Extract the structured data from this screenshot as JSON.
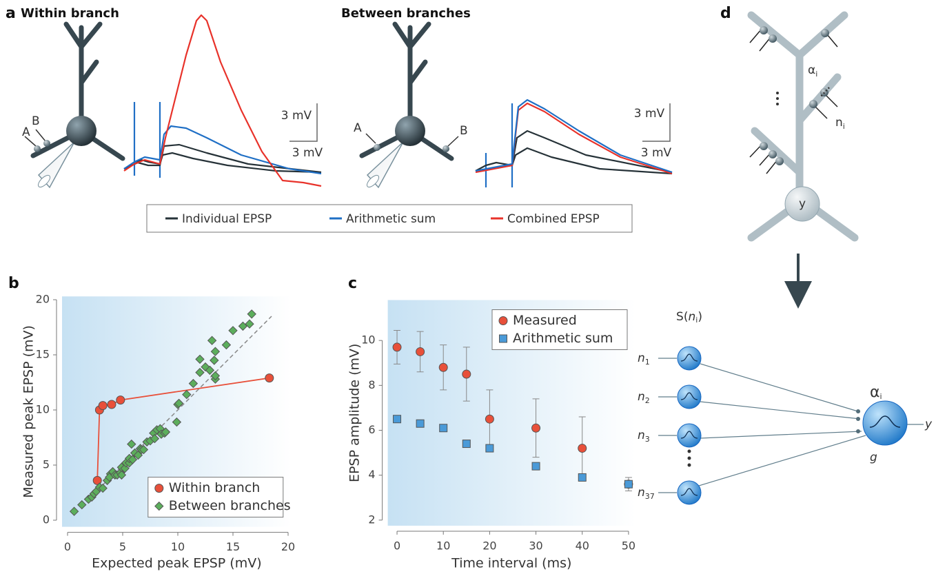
{
  "panel_a": {
    "label": "a",
    "left_title": "Within branch",
    "right_title": "Between branches",
    "left_synapses": [
      "A",
      "B"
    ],
    "right_synapses": [
      "A",
      "B"
    ],
    "left_scale": [
      "3 mV",
      "3 mV"
    ],
    "right_scale": [
      "3 mV",
      "3 mV"
    ],
    "legend": [
      {
        "name": "Individual EPSP",
        "color": "#263238"
      },
      {
        "name": "Arithmetic sum",
        "color": "#1f6fc5"
      },
      {
        "name": "Combined EPSP",
        "color": "#e8322a"
      }
    ]
  },
  "chart_data": [
    {
      "type": "scatter",
      "label": "b",
      "xlabel": "Expected peak EPSP (mV)",
      "ylabel": "Measured peak EPSP (mV)",
      "xlim": [
        -0.5,
        20.3
      ],
      "ylim": [
        -0.6,
        20.3
      ],
      "xticks": [
        0,
        5,
        10,
        15,
        20
      ],
      "yticks": [
        0,
        5,
        10,
        15,
        20
      ],
      "legend": "lower right",
      "reference_line": {
        "x": [
          2.8,
          18.5
        ],
        "values": [
          2.8,
          18.5
        ],
        "color": "#888888"
      },
      "series": [
        {
          "name": "Within branch",
          "color": "#e8503a",
          "marker": "circle",
          "connect": true,
          "x": [
            2.7,
            2.9,
            3.2,
            4.0,
            4.8,
            18.3
          ],
          "values": [
            3.6,
            10.0,
            10.4,
            10.5,
            10.9,
            12.9
          ]
        },
        {
          "name": "Between branches",
          "color": "#5cae5c",
          "marker": "diamond",
          "connect": false,
          "x": [
            0.6,
            1.3,
            1.9,
            2.2,
            2.4,
            2.6,
            2.9,
            3.2,
            3.6,
            3.9,
            4.1,
            3.8,
            4.3,
            4.5,
            4.8,
            4.9,
            4.9,
            5.2,
            5.3,
            5.6,
            5.6,
            5.9,
            5.8,
            6.1,
            6.4,
            6.6,
            6.7,
            6.9,
            7.2,
            7.5,
            7.8,
            7.9,
            8.1,
            8.4,
            8.5,
            8.8,
            8.9,
            9.9,
            10.0,
            10.1,
            10.8,
            11.4,
            12.0,
            12.0,
            12.5,
            12.9,
            13.3,
            13.4,
            13.1,
            13.4,
            13.4,
            14.4,
            15.0,
            15.9,
            16.5,
            16.7
          ],
          "values": [
            0.8,
            1.4,
            1.9,
            2.1,
            2.4,
            2.6,
            3.0,
            2.9,
            3.6,
            4.2,
            4.4,
            3.9,
            4.1,
            4.1,
            4.3,
            4.1,
            4.8,
            4.7,
            5.2,
            5.2,
            5.6,
            5.5,
            6.9,
            6.1,
            5.9,
            6.5,
            6.4,
            6.4,
            7.1,
            7.2,
            7.9,
            7.4,
            8.2,
            8.3,
            7.8,
            7.9,
            8.0,
            8.9,
            10.5,
            10.6,
            11.4,
            12.4,
            13.4,
            14.6,
            13.9,
            13.6,
            14.5,
            12.8,
            16.3,
            13.1,
            15.3,
            15.9,
            17.2,
            17.6,
            17.8,
            18.7
          ]
        }
      ]
    },
    {
      "type": "scatter",
      "label": "c",
      "xlabel": "Time interval (ms)",
      "ylabel": "EPSP amplitude (mV)",
      "xlim": [
        -2,
        51.5
      ],
      "ylim": [
        1.75,
        11.8
      ],
      "xticks": [
        0,
        10,
        20,
        30,
        40,
        50
      ],
      "yticks": [
        2,
        4,
        6,
        8,
        10
      ],
      "legend": "upper right",
      "series": [
        {
          "name": "Measured",
          "color": "#e8503a",
          "marker": "circle",
          "connect": false,
          "x": [
            0,
            5,
            10,
            15,
            20,
            30,
            40,
            50
          ],
          "values": [
            9.7,
            9.5,
            8.8,
            8.5,
            6.5,
            6.1,
            5.2,
            3.6
          ],
          "errors": [
            0.75,
            0.9,
            1.0,
            1.2,
            1.3,
            1.3,
            1.4,
            0.3
          ]
        },
        {
          "name": "Arithmetic sum",
          "color": "#4a9ad8",
          "marker": "square",
          "connect": false,
          "x": [
            0,
            5,
            10,
            15,
            20,
            30,
            40,
            50
          ],
          "values": [
            6.5,
            6.3,
            6.1,
            5.4,
            5.2,
            4.4,
            3.9,
            3.6
          ]
        }
      ]
    }
  ],
  "panel_d": {
    "label": "d",
    "alpha": "α",
    "alpha_sub": "i",
    "n": "n",
    "n_sub": "i",
    "soma": "y",
    "function": {
      "prefix": "S(",
      "var": "n",
      "sub": "i",
      "suffix": ")"
    },
    "inputs": [
      {
        "base": "n",
        "sub": "1"
      },
      {
        "base": "n",
        "sub": "2"
      },
      {
        "base": "n",
        "sub": "3"
      },
      {
        "base": "n",
        "sub": "37"
      }
    ],
    "output_alpha": "α",
    "output_alpha_sub": "i",
    "output_g": "g",
    "output": "y"
  }
}
